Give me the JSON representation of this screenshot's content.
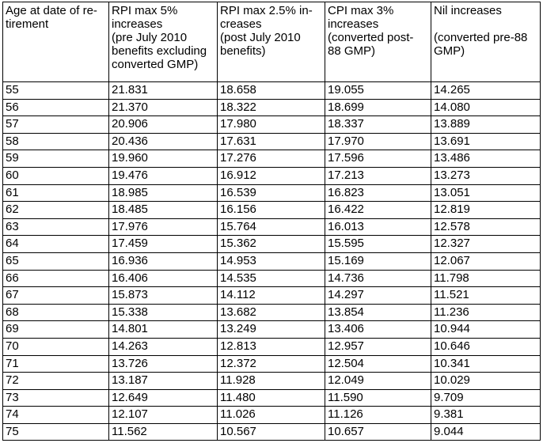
{
  "table": {
    "header": [
      [
        "Age at date of re-",
        "tirement"
      ],
      [
        "RPI max 5%",
        "increases",
        "(pre July 2010",
        "benefits excluding",
        "converted GMP)"
      ],
      [
        "RPI max 2.5% in-",
        "creases",
        "(post July 2010",
        "benefits)"
      ],
      [
        "CPI max 3%",
        "increases",
        "(converted post-",
        "88 GMP)"
      ],
      [
        "Nil increases",
        "(converted pre-88",
        "GMP)"
      ]
    ],
    "rows": [
      [
        55,
        "21.831",
        "18.658",
        "19.055",
        "14.265"
      ],
      [
        56,
        "21.370",
        "18.322",
        "18.699",
        "14.080"
      ],
      [
        57,
        "20.906",
        "17.980",
        "18.337",
        "13.889"
      ],
      [
        58,
        "20.436",
        "17.631",
        "17.970",
        "13.691"
      ],
      [
        59,
        "19.960",
        "17.276",
        "17.596",
        "13.486"
      ],
      [
        60,
        "19.476",
        "16.912",
        "17.213",
        "13.273"
      ],
      [
        61,
        "18.985",
        "16.539",
        "16.823",
        "13.051"
      ],
      [
        62,
        "18.485",
        "16.156",
        "16.422",
        "12.819"
      ],
      [
        63,
        "17.976",
        "15.764",
        "16.013",
        "12.578"
      ],
      [
        64,
        "17.459",
        "15.362",
        "15.595",
        "12.327"
      ],
      [
        65,
        "16.936",
        "14.953",
        "15.169",
        "12.067"
      ],
      [
        66,
        "16.406",
        "14.535",
        "14.736",
        "11.798"
      ],
      [
        67,
        "15.873",
        "14.112",
        "14.297",
        "11.521"
      ],
      [
        68,
        "15.338",
        "13.682",
        "13.854",
        "11.236"
      ],
      [
        69,
        "14.801",
        "13.249",
        "13.406",
        "10.944"
      ],
      [
        70,
        "14.263",
        "12.813",
        "12.957",
        "10.646"
      ],
      [
        71,
        "13.726",
        "12.372",
        "12.504",
        "10.341"
      ],
      [
        72,
        "13.187",
        "11.928",
        "12.049",
        "10.029"
      ],
      [
        73,
        "12.649",
        "11.480",
        "11.590",
        "9.709"
      ],
      [
        74,
        "12.107",
        "11.026",
        "11.126",
        "9.381"
      ],
      [
        75,
        "11.562",
        "10.567",
        "10.657",
        "9.044"
      ]
    ]
  }
}
